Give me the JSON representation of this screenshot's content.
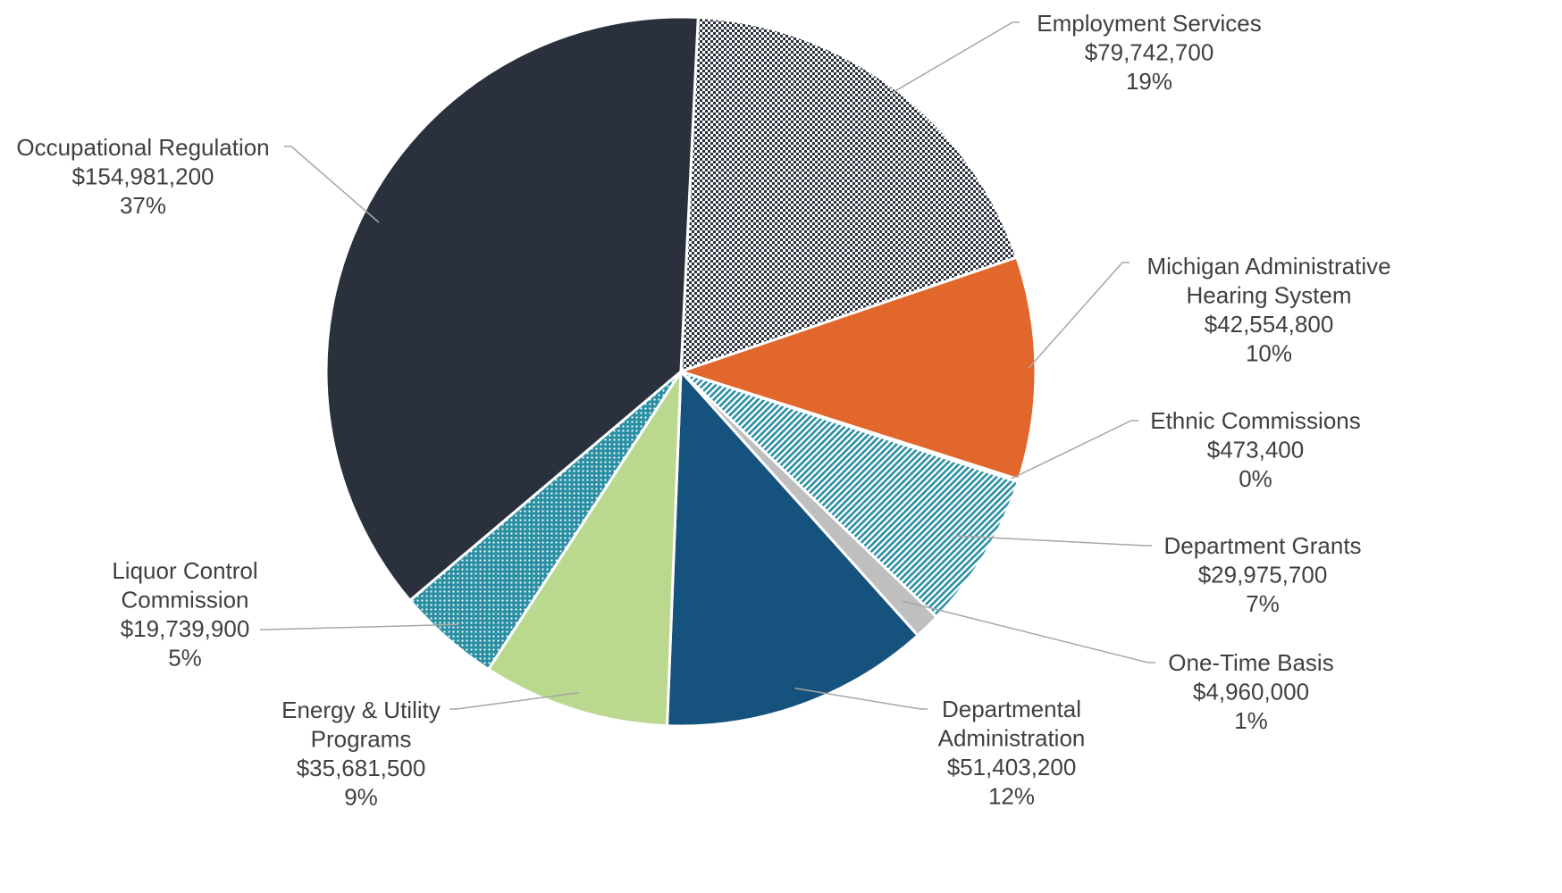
{
  "chart_data": {
    "type": "pie",
    "title": "",
    "slices": [
      {
        "label": "Employment Services",
        "value": 79742700,
        "value_label": "$79,742,700",
        "percent_label": "19%",
        "fill": "pattern-checker",
        "color": "#2a303c"
      },
      {
        "label": "Michigan Administrative Hearing System",
        "value": 42554800,
        "value_label": "$42,554,800",
        "percent_label": "10%",
        "fill": "solid",
        "color": "#e2672d"
      },
      {
        "label": "Ethnic Commissions",
        "value": 473400,
        "value_label": "$473,400",
        "percent_label": "0%",
        "fill": "solid",
        "color": "#e2672d"
      },
      {
        "label": "Department Grants",
        "value": 29975700,
        "value_label": "$29,975,700",
        "percent_label": "7%",
        "fill": "pattern-diagonal",
        "color": "#2a8fa3"
      },
      {
        "label": "One-Time Basis",
        "value": 4960000,
        "value_label": "$4,960,000",
        "percent_label": "1%",
        "fill": "solid",
        "color": "#bfbfbf"
      },
      {
        "label": "Departmental Administration",
        "value": 51403200,
        "value_label": "$51,403,200",
        "percent_label": "12%",
        "fill": "solid",
        "color": "#16527e"
      },
      {
        "label": "Energy & Utility Programs",
        "value": 35681500,
        "value_label": "$35,681,500",
        "percent_label": "9%",
        "fill": "solid",
        "color": "#bad98f"
      },
      {
        "label": "Liquor Control Commission",
        "value": 19739900,
        "value_label": "$19,739,900",
        "percent_label": "5%",
        "fill": "pattern-dots",
        "color": "#2a8fa3"
      },
      {
        "label": "Occupational Regulation",
        "value": 154981200,
        "value_label": "$154,981,200",
        "percent_label": "37%",
        "fill": "solid",
        "color": "#2a303c"
      }
    ]
  }
}
